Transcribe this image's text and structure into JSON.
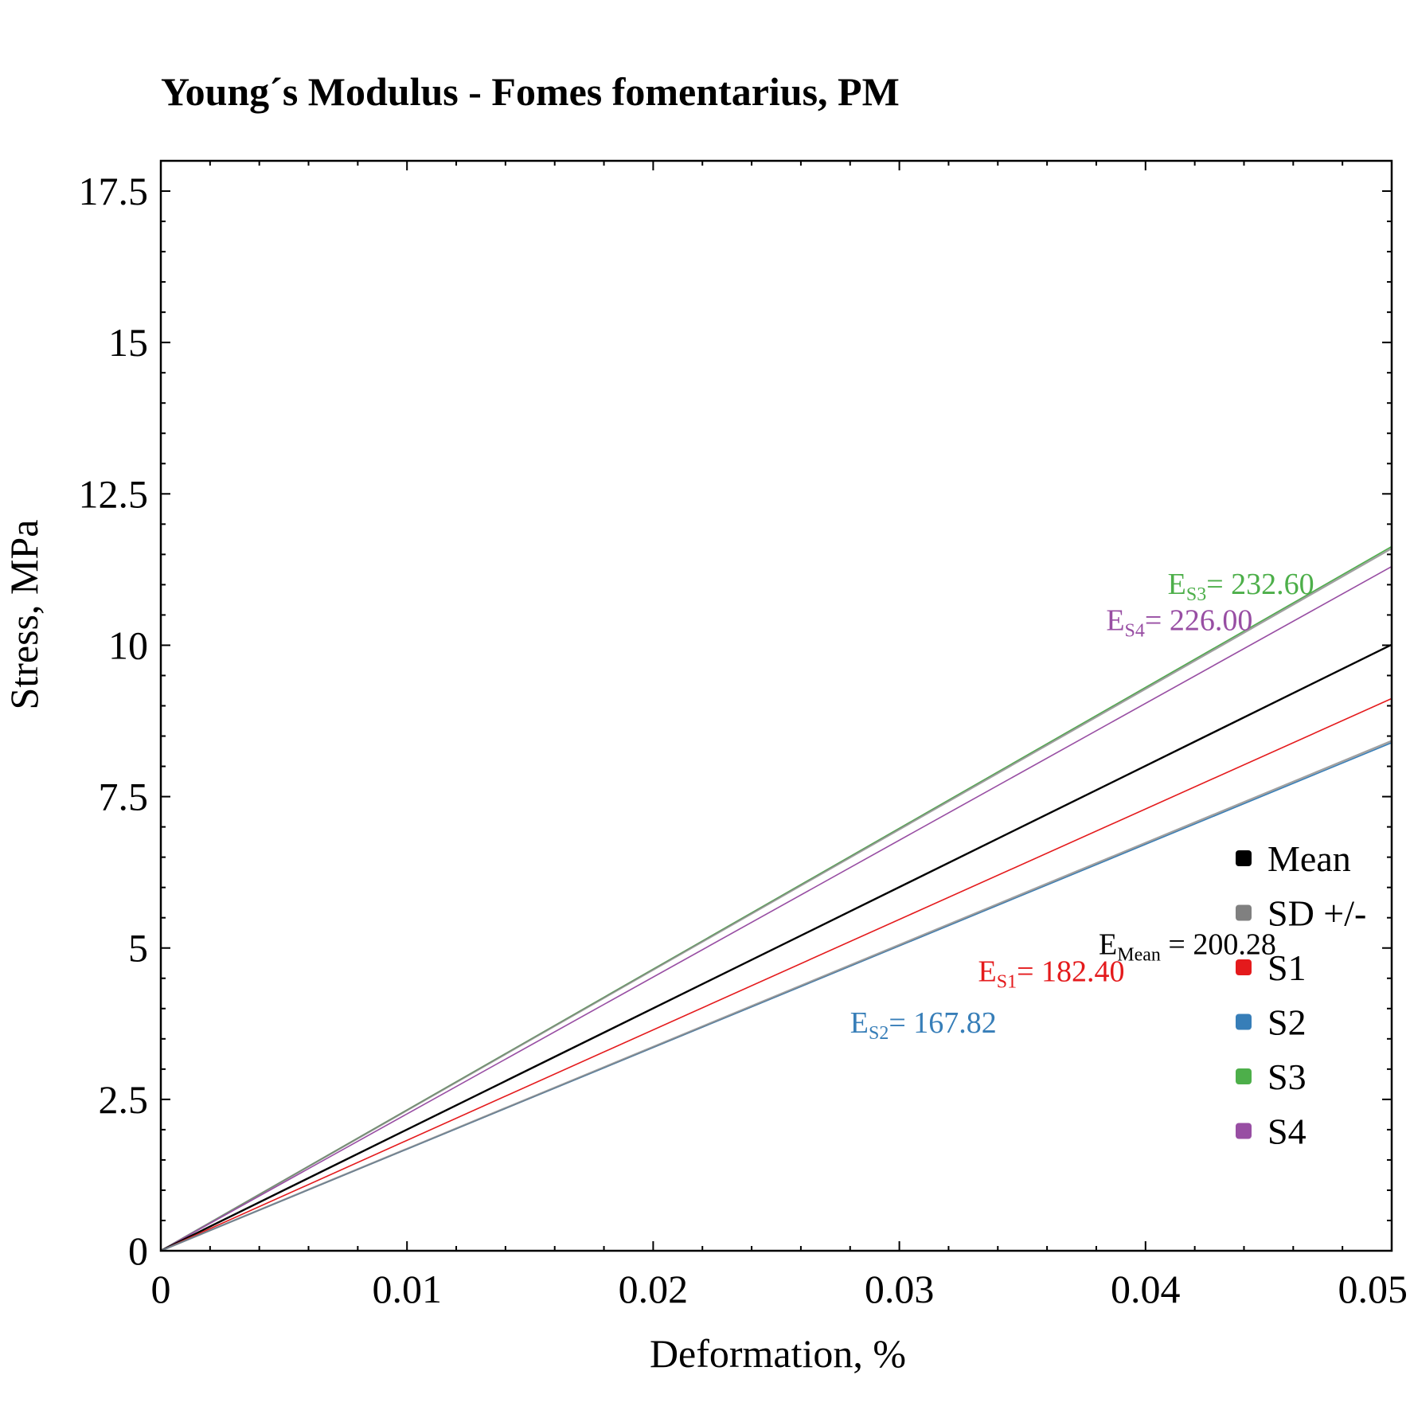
{
  "chart_data": {
    "type": "line",
    "title": "Young´s Modulus - Fomes fomentarius, PM",
    "xlabel": "Deformation, %",
    "ylabel": "Stress, MPa",
    "xlim": [
      0,
      0.05
    ],
    "ylim": [
      0,
      18
    ],
    "x_ticks": [
      "0",
      "0.01",
      "0.02",
      "0.03",
      "0.04",
      "0.05"
    ],
    "y_ticks": [
      "0",
      "2.5",
      "5",
      "7.5",
      "10",
      "12.5",
      "15",
      "17.5"
    ],
    "grid": false,
    "legend_position": "right",
    "legend": [
      {
        "label": "Mean",
        "color": "#000000"
      },
      {
        "label": "SD +/-",
        "color": "#808080"
      },
      {
        "label": "S1",
        "color": "#e41a1c"
      },
      {
        "label": "S2",
        "color": "#377eb8"
      },
      {
        "label": "S3",
        "color": "#4daf4a"
      },
      {
        "label": "S4",
        "color": "#984ea3"
      }
    ],
    "series": [
      {
        "name": "S3",
        "color": "#4daf4a",
        "x": [
          0,
          0.05
        ],
        "y": [
          0,
          11.63
        ]
      },
      {
        "name": "SD +/-",
        "color": "#808080",
        "x": [
          0,
          0.05
        ],
        "y": [
          0,
          11.6
        ]
      },
      {
        "name": "S4",
        "color": "#984ea3",
        "x": [
          0,
          0.05
        ],
        "y": [
          0,
          11.3
        ]
      },
      {
        "name": "Mean",
        "color": "#000000",
        "x": [
          0,
          0.05
        ],
        "y": [
          0,
          10.01
        ]
      },
      {
        "name": "S1",
        "color": "#e41a1c",
        "x": [
          0,
          0.05
        ],
        "y": [
          0,
          9.12
        ]
      },
      {
        "name": "S2",
        "color": "#377eb8",
        "x": [
          0,
          0.05
        ],
        "y": [
          0,
          8.39
        ]
      },
      {
        "name": "SD +/-",
        "color": "#808080",
        "x": [
          0,
          0.05
        ],
        "y": [
          0,
          8.42
        ]
      }
    ],
    "annotations": [
      {
        "prefix": "E",
        "sub": "S3",
        "text": "= 232.60",
        "color": "#4daf4a",
        "x": 0.0409,
        "y": 10.85
      },
      {
        "prefix": "E",
        "sub": "S4",
        "text": "= 226.00",
        "color": "#984ea3",
        "x": 0.0384,
        "y": 10.25
      },
      {
        "prefix": "E",
        "sub": "Mean",
        "text": " = 200.28",
        "color": "#000000",
        "x": 0.0381,
        "y": 4.9
      },
      {
        "prefix": "E",
        "sub": "S1",
        "text": "= 182.40",
        "color": "#e41a1c",
        "x": 0.0332,
        "y": 4.45
      },
      {
        "prefix": "E",
        "sub": "S2",
        "text": "= 167.82",
        "color": "#377eb8",
        "x": 0.028,
        "y": 3.6
      }
    ]
  }
}
